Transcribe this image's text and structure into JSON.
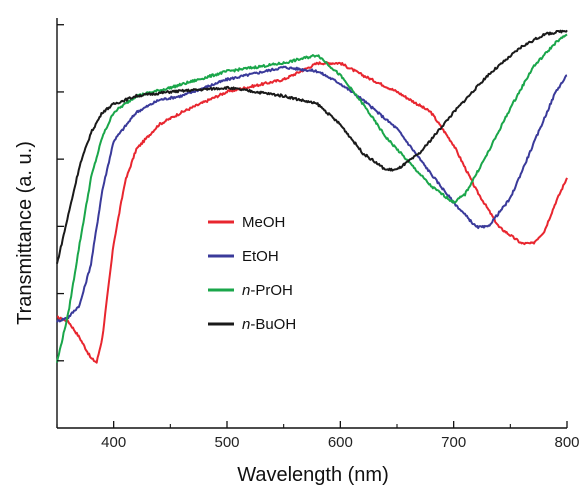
{
  "chart_data": {
    "type": "line",
    "xlabel": "Wavelength (nm)",
    "ylabel": "Transmittance (a. u.)",
    "xlim": [
      350,
      800
    ],
    "ylim": [
      0,
      1
    ],
    "x_ticks": [
      400,
      500,
      600,
      700,
      800
    ],
    "y_ticks_labeled": false,
    "grid": false,
    "legend_position": "center",
    "series": [
      {
        "name": "MeOH",
        "name_prefix": "",
        "name_suffix": "MeOH",
        "color": "#e8262f",
        "points": [
          [
            350,
            0.27
          ],
          [
            360,
            0.26
          ],
          [
            370,
            0.22
          ],
          [
            380,
            0.17
          ],
          [
            385,
            0.16
          ],
          [
            390,
            0.22
          ],
          [
            400,
            0.45
          ],
          [
            410,
            0.6
          ],
          [
            420,
            0.68
          ],
          [
            440,
            0.74
          ],
          [
            460,
            0.77
          ],
          [
            500,
            0.82
          ],
          [
            550,
            0.85
          ],
          [
            580,
            0.89
          ],
          [
            600,
            0.89
          ],
          [
            620,
            0.86
          ],
          [
            650,
            0.82
          ],
          [
            680,
            0.77
          ],
          [
            700,
            0.69
          ],
          [
            720,
            0.58
          ],
          [
            740,
            0.49
          ],
          [
            760,
            0.45
          ],
          [
            770,
            0.45
          ],
          [
            780,
            0.48
          ],
          [
            790,
            0.55
          ],
          [
            800,
            0.61
          ]
        ]
      },
      {
        "name": "EtOH",
        "name_prefix": "",
        "name_suffix": "EtOH",
        "color": "#3a3a9a",
        "points": [
          [
            350,
            0.26
          ],
          [
            360,
            0.27
          ],
          [
            370,
            0.3
          ],
          [
            380,
            0.4
          ],
          [
            390,
            0.58
          ],
          [
            400,
            0.7
          ],
          [
            420,
            0.77
          ],
          [
            440,
            0.8
          ],
          [
            460,
            0.81
          ],
          [
            500,
            0.85
          ],
          [
            550,
            0.88
          ],
          [
            580,
            0.87
          ],
          [
            600,
            0.84
          ],
          [
            620,
            0.8
          ],
          [
            650,
            0.73
          ],
          [
            680,
            0.62
          ],
          [
            700,
            0.55
          ],
          [
            720,
            0.49
          ],
          [
            730,
            0.49
          ],
          [
            750,
            0.56
          ],
          [
            770,
            0.69
          ],
          [
            790,
            0.82
          ],
          [
            800,
            0.86
          ]
        ]
      },
      {
        "name": "n-PrOH",
        "name_prefix": "n",
        "name_suffix": "-PrOH",
        "color": "#1aa64a",
        "points": [
          [
            350,
            0.16
          ],
          [
            360,
            0.28
          ],
          [
            370,
            0.45
          ],
          [
            380,
            0.61
          ],
          [
            390,
            0.71
          ],
          [
            400,
            0.77
          ],
          [
            420,
            0.81
          ],
          [
            450,
            0.83
          ],
          [
            500,
            0.87
          ],
          [
            550,
            0.89
          ],
          [
            580,
            0.91
          ],
          [
            600,
            0.86
          ],
          [
            620,
            0.79
          ],
          [
            640,
            0.71
          ],
          [
            660,
            0.65
          ],
          [
            680,
            0.59
          ],
          [
            700,
            0.55
          ],
          [
            710,
            0.57
          ],
          [
            730,
            0.67
          ],
          [
            750,
            0.78
          ],
          [
            770,
            0.88
          ],
          [
            790,
            0.94
          ],
          [
            800,
            0.96
          ]
        ]
      },
      {
        "name": "n-BuOH",
        "name_prefix": "n",
        "name_suffix": "-BuOH",
        "color": "#1a1a1a",
        "points": [
          [
            350,
            0.4
          ],
          [
            360,
            0.52
          ],
          [
            370,
            0.64
          ],
          [
            380,
            0.72
          ],
          [
            390,
            0.77
          ],
          [
            400,
            0.79
          ],
          [
            420,
            0.81
          ],
          [
            450,
            0.82
          ],
          [
            500,
            0.83
          ],
          [
            550,
            0.81
          ],
          [
            580,
            0.79
          ],
          [
            600,
            0.74
          ],
          [
            620,
            0.67
          ],
          [
            640,
            0.63
          ],
          [
            650,
            0.63
          ],
          [
            670,
            0.67
          ],
          [
            700,
            0.77
          ],
          [
            730,
            0.86
          ],
          [
            760,
            0.93
          ],
          [
            780,
            0.96
          ],
          [
            800,
            0.97
          ]
        ]
      }
    ]
  }
}
